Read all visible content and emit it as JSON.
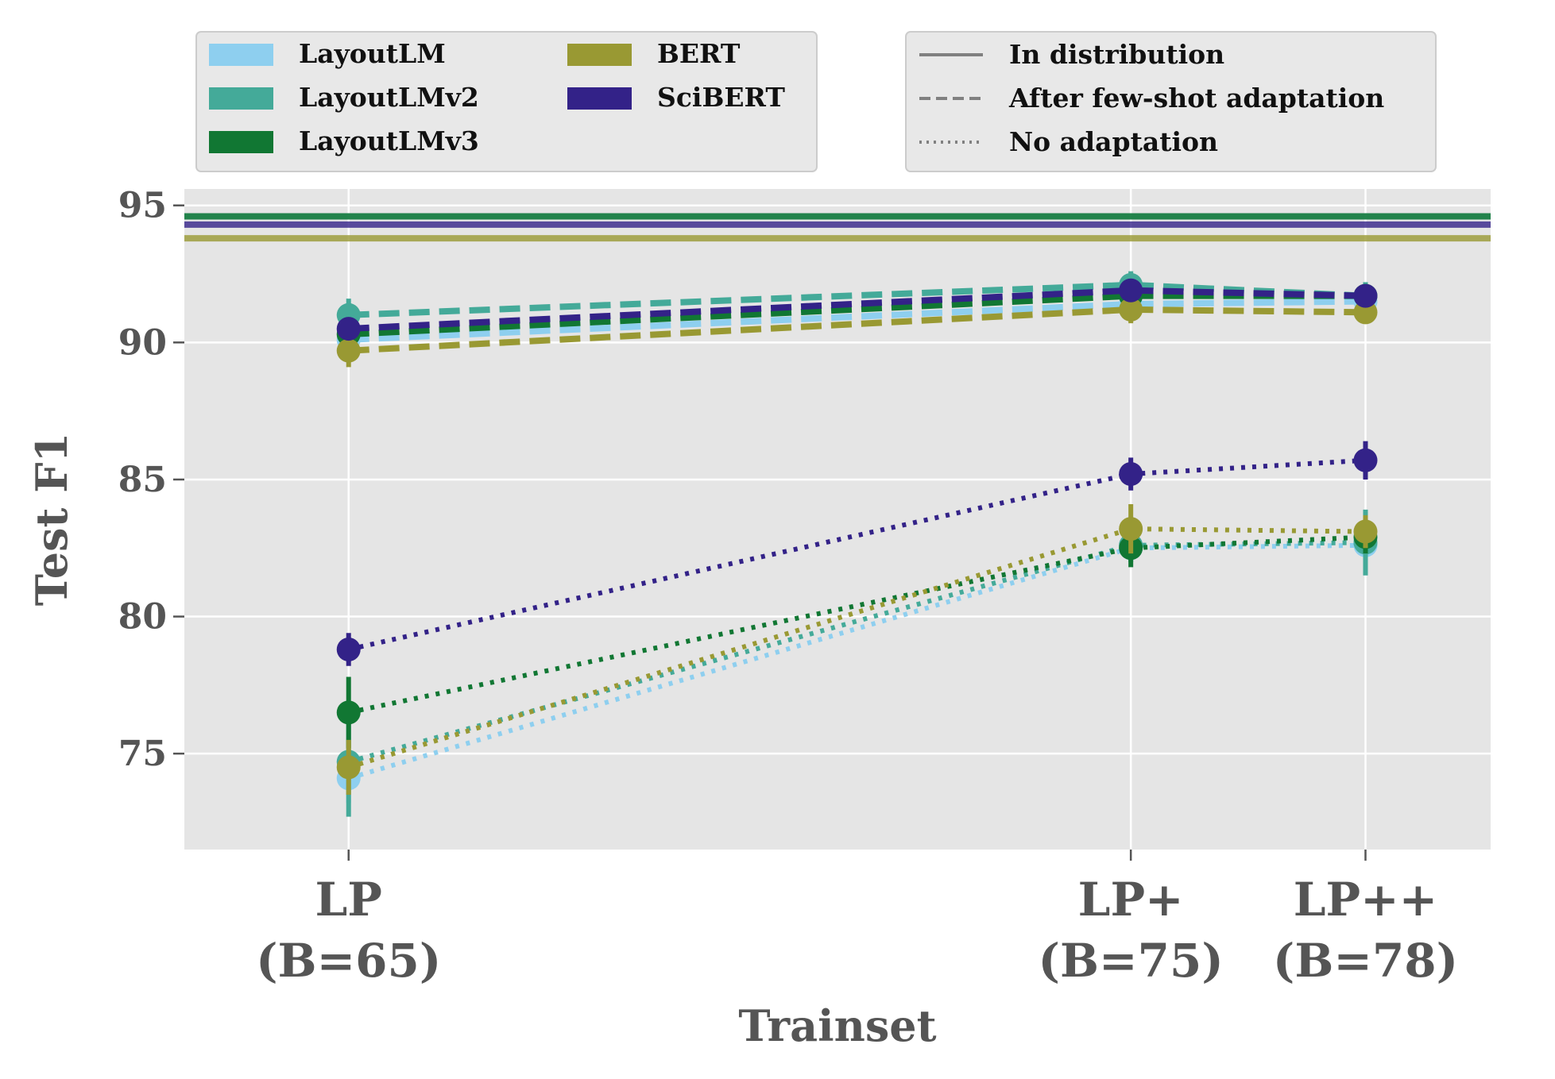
{
  "chart_data": {
    "type": "line",
    "title": "",
    "xlabel": "Trainset",
    "ylabel": "Test F1",
    "ylim": [
      71.5,
      95.6
    ],
    "yticks": [
      75,
      80,
      85,
      90,
      95
    ],
    "grid": true,
    "x_positions": [
      65,
      75,
      78
    ],
    "categories": [
      {
        "line1": "LP",
        "line2": "(B=65)"
      },
      {
        "line1": "LP+",
        "line2": "(B=75)"
      },
      {
        "line1": "LP++",
        "line2": "(B=78)"
      }
    ],
    "styles": [
      {
        "name": "In distribution",
        "dash": "solid"
      },
      {
        "name": "After few-shot adaptation",
        "dash": "dashed"
      },
      {
        "name": "No adaptation",
        "dash": "dotted"
      }
    ],
    "series": [
      {
        "name": "LayoutLM",
        "color": "#8ecfef",
        "in_distribution": null,
        "after_few_shot": [
          90.1,
          91.4,
          91.5
        ],
        "after_few_shot_err": [
          0.4,
          0.4,
          0.4
        ],
        "no_adaptation": [
          74.1,
          82.5,
          82.6
        ],
        "no_adaptation_err": [
          0.9,
          0.5,
          0.6
        ]
      },
      {
        "name": "LayoutLMv2",
        "color": "#44aa99",
        "in_distribution": 94.6,
        "after_few_shot": [
          91.0,
          92.1,
          91.7
        ],
        "after_few_shot_err": [
          0.6,
          0.5,
          0.5
        ],
        "no_adaptation": [
          74.7,
          82.6,
          82.7
        ],
        "no_adaptation_err": [
          2.0,
          0.6,
          1.2
        ]
      },
      {
        "name": "LayoutLMv3",
        "color": "#117733",
        "in_distribution": 94.6,
        "after_few_shot": [
          90.3,
          91.7,
          91.7
        ],
        "after_few_shot_err": [
          0.5,
          0.4,
          0.4
        ],
        "no_adaptation": [
          76.5,
          82.5,
          82.9
        ],
        "no_adaptation_err": [
          1.3,
          0.7,
          0.6
        ]
      },
      {
        "name": "BERT",
        "color": "#999933",
        "in_distribution": 93.8,
        "after_few_shot": [
          89.7,
          91.2,
          91.1
        ],
        "after_few_shot_err": [
          0.6,
          0.5,
          0.4
        ],
        "no_adaptation": [
          74.5,
          83.2,
          83.1
        ],
        "no_adaptation_err": [
          1.0,
          0.9,
          0.6
        ]
      },
      {
        "name": "SciBERT",
        "color": "#332288",
        "in_distribution": 94.3,
        "after_few_shot": [
          90.5,
          91.9,
          91.7
        ],
        "after_few_shot_err": [
          0.4,
          0.4,
          0.4
        ],
        "no_adaptation": [
          78.8,
          85.2,
          85.7
        ],
        "no_adaptation_err": [
          0.6,
          0.6,
          0.7
        ]
      }
    ]
  }
}
